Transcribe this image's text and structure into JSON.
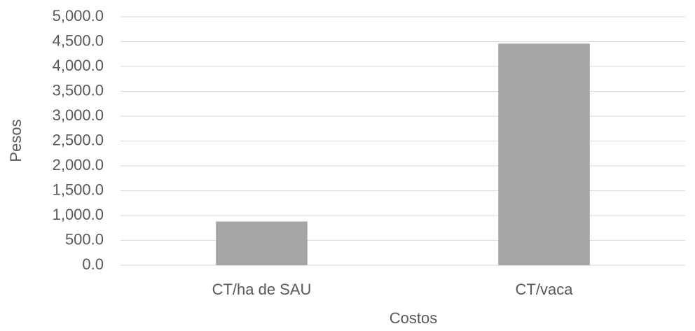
{
  "chart_data": {
    "type": "bar",
    "categories": [
      "CT/ha de SAU",
      "CT/vaca"
    ],
    "values": [
      880,
      4460
    ],
    "color": "#a5a5a5",
    "xlabel": "Costos",
    "ylabel": "Pesos",
    "ylim": [
      0,
      5000
    ],
    "yticks": [
      {
        "value": 0,
        "label": "0.0"
      },
      {
        "value": 500,
        "label": "500.0"
      },
      {
        "value": 1000,
        "label": "1,000.0"
      },
      {
        "value": 1500,
        "label": "1,500.0"
      },
      {
        "value": 2000,
        "label": "2,000.0"
      },
      {
        "value": 2500,
        "label": "2,500.0"
      },
      {
        "value": 3000,
        "label": "3,000.0"
      },
      {
        "value": 3500,
        "label": "3,500.0"
      },
      {
        "value": 4000,
        "label": "4,000.0"
      },
      {
        "value": 4500,
        "label": "4,500.0"
      },
      {
        "value": 5000,
        "label": "5,000.0"
      }
    ],
    "grid": true
  }
}
